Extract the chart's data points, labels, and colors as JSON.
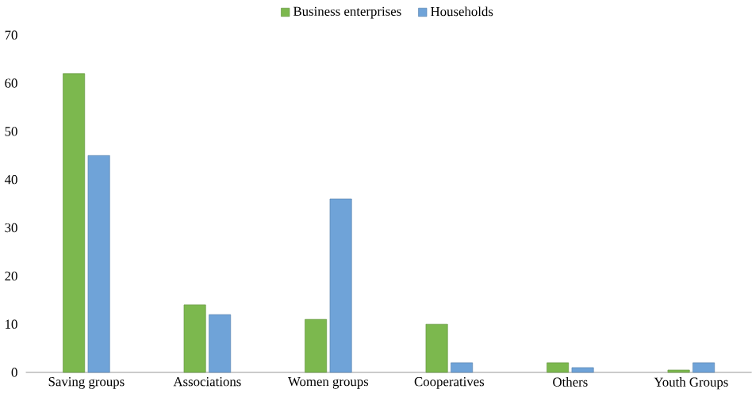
{
  "chart_data": {
    "type": "bar",
    "categories": [
      "Saving groups",
      "Associations",
      "Women groups",
      "Cooperatives",
      "Others",
      "Youth Groups"
    ],
    "series": [
      {
        "name": "Business enterprises",
        "color": "#7cb84e",
        "values": [
          62,
          14,
          11,
          10,
          2,
          0.5
        ]
      },
      {
        "name": "Households",
        "color": "#6fa3d8",
        "values": [
          45,
          12,
          36,
          2,
          1,
          2
        ]
      }
    ],
    "ylim": [
      0,
      70
    ],
    "yticks": [
      0,
      10,
      20,
      30,
      40,
      50,
      60,
      70
    ],
    "legend": "top"
  }
}
